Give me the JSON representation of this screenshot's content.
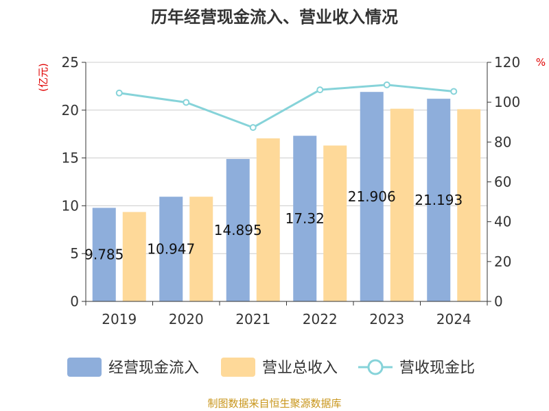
{
  "chart_data": {
    "type": "bar",
    "title": "历年经营现金流入、营业收入情况",
    "categories": [
      "2019",
      "2020",
      "2021",
      "2022",
      "2023",
      "2024"
    ],
    "series": [
      {
        "name": "经营现金流入",
        "axis": "left",
        "type": "bar",
        "color": "#8eaedb",
        "values": [
          9.785,
          10.947,
          14.895,
          17.32,
          21.906,
          21.193
        ],
        "labels": [
          "9.785",
          "10.947",
          "14.895",
          "17.32",
          "21.906",
          "21.193"
        ]
      },
      {
        "name": "营业总收入",
        "axis": "left",
        "type": "bar",
        "color": "#fed999",
        "values": [
          9.35,
          10.95,
          17.05,
          16.3,
          20.15,
          20.1
        ]
      },
      {
        "name": "营收现金比",
        "axis": "right",
        "type": "line",
        "color": "#86d3d9",
        "values": [
          104.6,
          99.9,
          87.3,
          106.2,
          108.7,
          105.4
        ]
      }
    ],
    "y_left": {
      "unit": "(亿元)",
      "ylim": [
        0,
        25
      ],
      "ticks": [
        "0",
        "5",
        "10",
        "15",
        "20",
        "25"
      ]
    },
    "y_right": {
      "unit": "%",
      "ylim": [
        0,
        120
      ],
      "ticks": [
        "0",
        "20",
        "40",
        "60",
        "80",
        "100",
        "120"
      ]
    },
    "grid": true,
    "legend": {
      "position": "bottom"
    }
  },
  "source": "制图数据来自恒生聚源数据库"
}
